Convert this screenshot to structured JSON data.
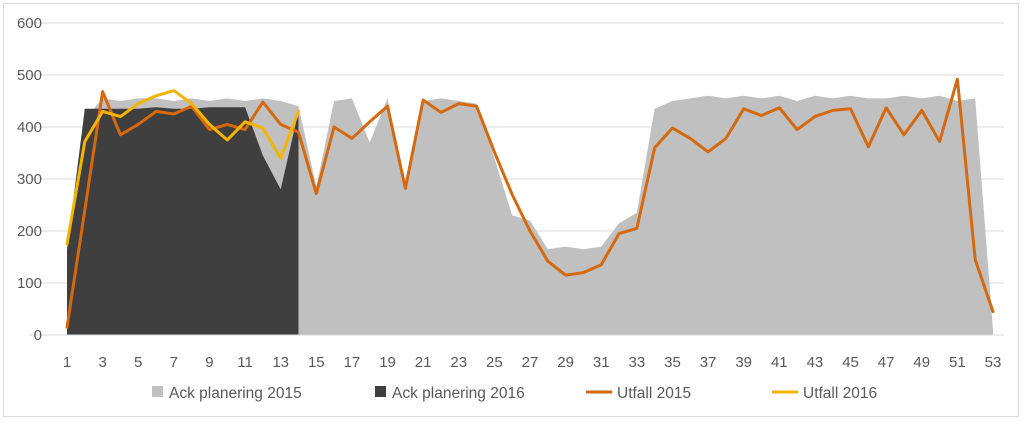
{
  "chart_data": {
    "type": "area",
    "title": "",
    "xlabel": "",
    "ylabel": "",
    "x_categories": [
      1,
      2,
      3,
      4,
      5,
      6,
      7,
      8,
      9,
      10,
      11,
      12,
      13,
      14,
      15,
      16,
      17,
      18,
      19,
      20,
      21,
      22,
      23,
      24,
      25,
      26,
      27,
      28,
      29,
      30,
      31,
      32,
      33,
      34,
      35,
      36,
      37,
      38,
      39,
      40,
      41,
      42,
      43,
      44,
      45,
      46,
      47,
      48,
      49,
      50,
      51,
      52,
      53
    ],
    "x_tick_labels": [
      "1",
      "3",
      "5",
      "7",
      "9",
      "11",
      "13",
      "15",
      "17",
      "19",
      "21",
      "23",
      "25",
      "27",
      "29",
      "31",
      "33",
      "35",
      "37",
      "39",
      "41",
      "43",
      "45",
      "47",
      "49",
      "51",
      "53"
    ],
    "ylim": [
      0,
      600
    ],
    "y_tick_labels": [
      "0",
      "100",
      "200",
      "300",
      "400",
      "500",
      "600"
    ],
    "grid": "horizontal",
    "legend_position": "bottom",
    "series": [
      {
        "name": "Ack planering 2015",
        "kind": "area",
        "color": "#c0c0c0",
        "values": [
          155,
          415,
          455,
          450,
          455,
          455,
          450,
          455,
          450,
          455,
          450,
          455,
          450,
          440,
          285,
          450,
          455,
          370,
          455,
          285,
          450,
          455,
          450,
          445,
          340,
          230,
          220,
          165,
          170,
          165,
          170,
          215,
          235,
          435,
          450,
          455,
          460,
          455,
          460,
          455,
          460,
          450,
          460,
          455,
          460,
          455,
          455,
          460,
          455,
          460,
          450,
          455,
          10
        ]
      },
      {
        "name": "Ack planering 2016",
        "kind": "area",
        "color": "#3f3f3f",
        "values": [
          165,
          435,
          435,
          435,
          435,
          438,
          435,
          435,
          438,
          438,
          438,
          345,
          280,
          430
        ]
      },
      {
        "name": "Utfall 2015",
        "kind": "line",
        "color": "#d4690f",
        "values": [
          15,
          240,
          468,
          385,
          405,
          430,
          425,
          440,
          395,
          405,
          395,
          448,
          405,
          390,
          272,
          400,
          378,
          410,
          440,
          282,
          452,
          428,
          445,
          440,
          352,
          270,
          200,
          142,
          115,
          120,
          135,
          195,
          205,
          360,
          398,
          378,
          352,
          378,
          435,
          422,
          437,
          395,
          420,
          432,
          435,
          362,
          437,
          385,
          432,
          372,
          492,
          145,
          45
        ]
      },
      {
        "name": "Utfall 2016",
        "kind": "line",
        "color": "#f5b400",
        "values": [
          175,
          372,
          430,
          420,
          445,
          460,
          470,
          445,
          405,
          375,
          410,
          398,
          340,
          430
        ]
      }
    ]
  }
}
